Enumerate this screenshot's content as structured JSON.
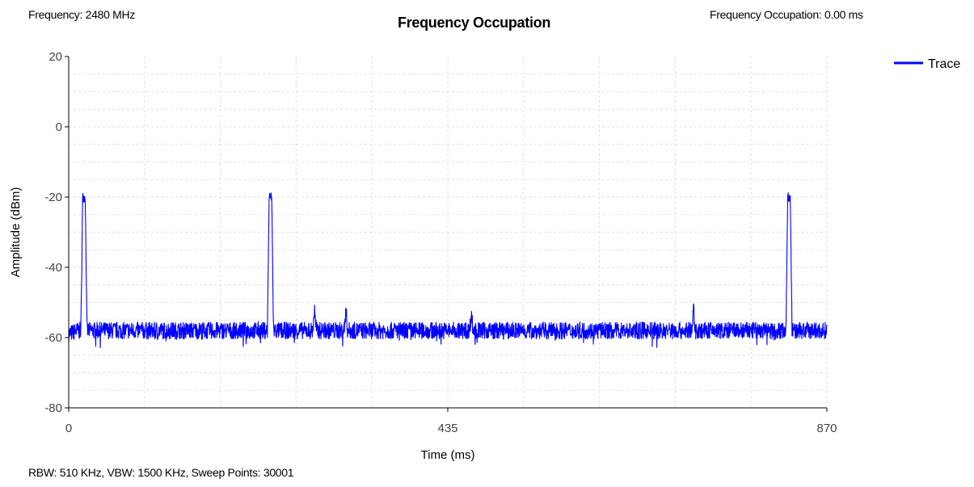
{
  "header": {
    "frequency": "Frequency: 2480 MHz",
    "title": "Frequency Occupation",
    "occupation": "Frequency Occupation: 0.00 ms"
  },
  "footer": "RBW: 510 KHz,   VBW: 1500 KHz,  Sweep Points: 30001",
  "colors": {
    "trace": "#0000ff",
    "grid": "#e2e2e2",
    "axis": "#000000"
  },
  "chart_data": {
    "type": "line",
    "title": "Frequency Occupation",
    "xlabel": "Time (ms)",
    "ylabel": "Amplitude (dBm)",
    "xlim": [
      0,
      870
    ],
    "ylim": [
      -80,
      20
    ],
    "x_ticks": [
      0,
      435,
      870
    ],
    "y_ticks": [
      20,
      0,
      -20,
      -40,
      -60,
      -80
    ],
    "grid": true,
    "legend_position": "top-right",
    "noise_floor_dbm": -58,
    "series": [
      {
        "name": "Trace",
        "color": "#0000ff",
        "points": [
          [
            0,
            -59
          ],
          [
            10,
            -58
          ],
          [
            14,
            -58
          ],
          [
            16,
            -20
          ],
          [
            19,
            -20
          ],
          [
            21,
            -58
          ],
          [
            60,
            -58
          ],
          [
            120,
            -58
          ],
          [
            180,
            -58
          ],
          [
            228,
            -58
          ],
          [
            230,
            -20
          ],
          [
            233,
            -20
          ],
          [
            235,
            -58
          ],
          [
            280,
            -58
          ],
          [
            282,
            -52
          ],
          [
            284,
            -58
          ],
          [
            316,
            -58
          ],
          [
            318,
            -52
          ],
          [
            320,
            -58
          ],
          [
            400,
            -58
          ],
          [
            460,
            -58
          ],
          [
            462,
            -53
          ],
          [
            464,
            -58
          ],
          [
            520,
            -58
          ],
          [
            600,
            -58
          ],
          [
            680,
            -58
          ],
          [
            715,
            -58
          ],
          [
            717,
            -52
          ],
          [
            719,
            -58
          ],
          [
            780,
            -58
          ],
          [
            823,
            -58
          ],
          [
            825,
            -20
          ],
          [
            828,
            -20
          ],
          [
            830,
            -58
          ],
          [
            870,
            -58
          ]
        ]
      }
    ]
  }
}
